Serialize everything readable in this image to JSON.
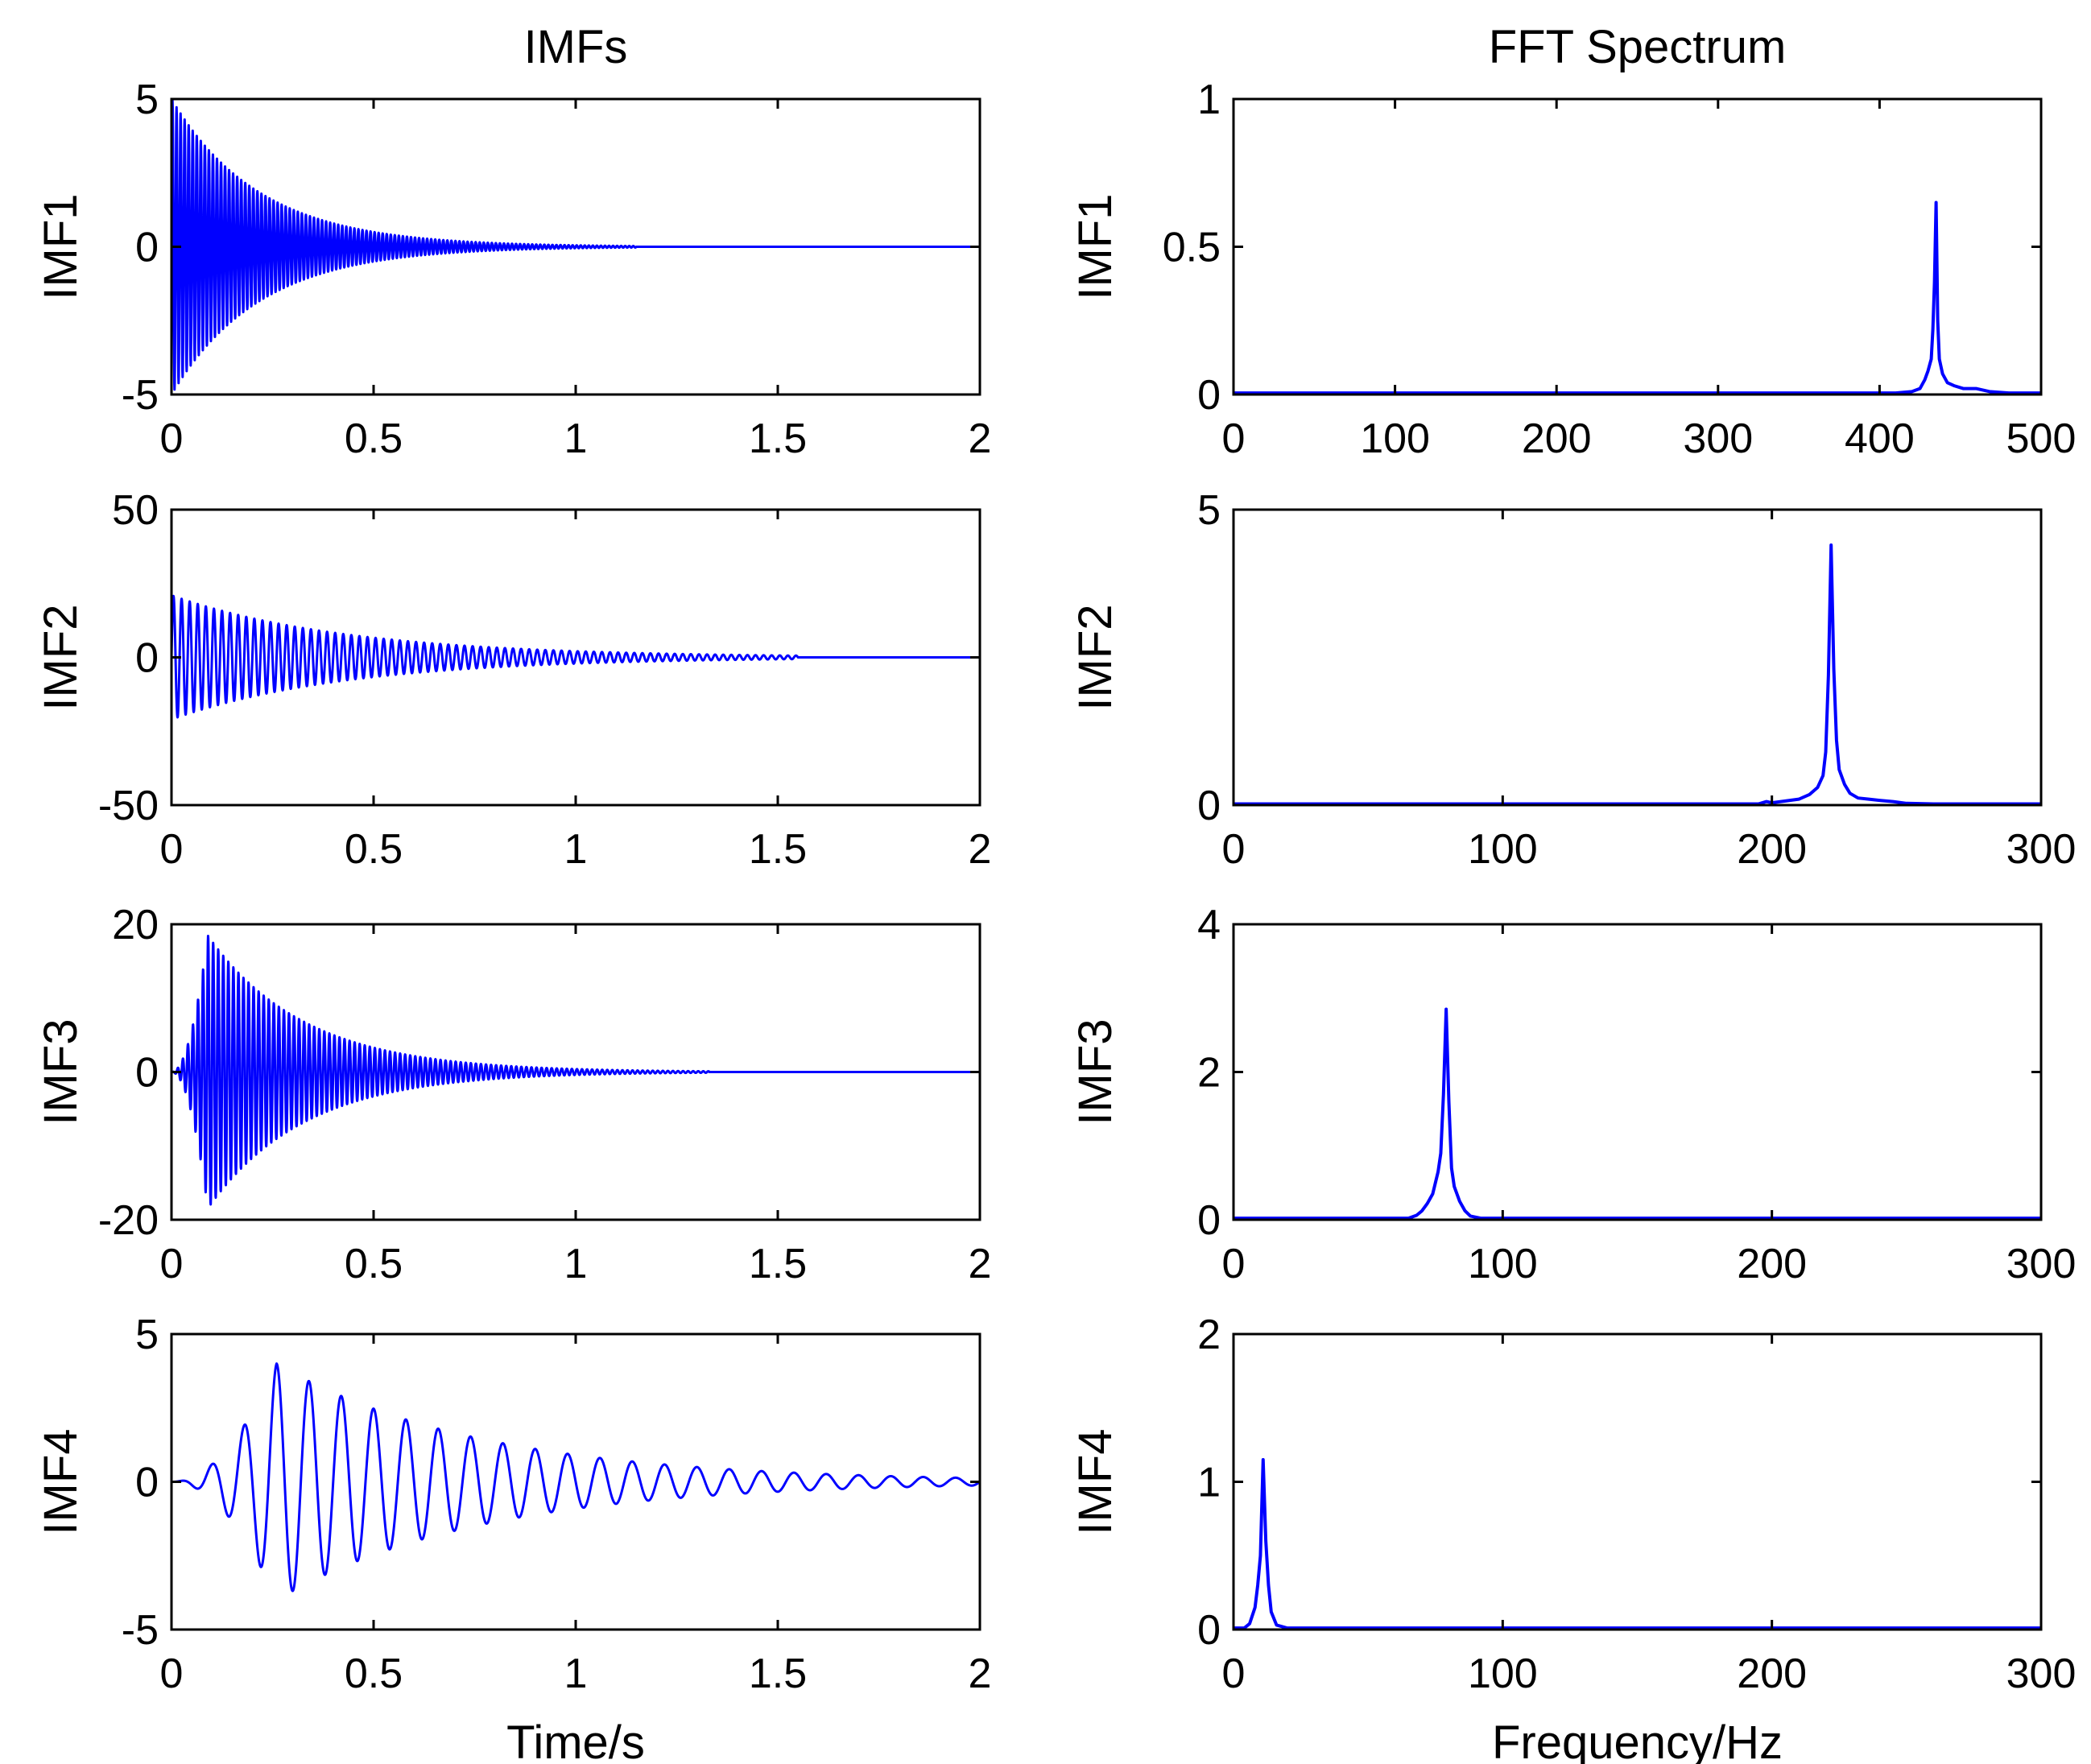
{
  "colors": {
    "line": "#0000ff",
    "axes": "#000000",
    "background": "#ffffff"
  },
  "chart_data": [
    {
      "type": "line",
      "column": "left",
      "title": "IMFs",
      "ylabel": "IMF1",
      "xlabel": "",
      "xlim": [
        0,
        2
      ],
      "ylim": [
        -5,
        5
      ],
      "xticks": [
        0,
        0.5,
        1,
        1.5,
        2
      ],
      "xticklabels": [
        "0",
        "0.5",
        "1",
        "1.5",
        "2"
      ],
      "yticks": [
        -5,
        0,
        5
      ],
      "yticklabels": [
        "-5",
        "0",
        "5"
      ],
      "signal": {
        "kind": "burst",
        "amplitude": 5,
        "decay": 4.6,
        "end": 1.15,
        "period": 0.01
      }
    },
    {
      "type": "line",
      "column": "right",
      "title": "FFT Spectrum",
      "ylabel": "IMF1",
      "xlabel": "",
      "xlim": [
        0,
        500
      ],
      "ylim": [
        0,
        1
      ],
      "xticks": [
        0,
        100,
        200,
        300,
        400,
        500
      ],
      "xticklabels": [
        "0",
        "100",
        "200",
        "300",
        "400",
        "500"
      ],
      "yticks": [
        0,
        0.5,
        1
      ],
      "yticklabels": [
        "0",
        "0.5",
        "1"
      ],
      "x": [
        0,
        410,
        420,
        425,
        428,
        430,
        432,
        433,
        434,
        435,
        436,
        437,
        439,
        442,
        446,
        452,
        460,
        468,
        480,
        500
      ],
      "y": [
        0.005,
        0.005,
        0.01,
        0.02,
        0.05,
        0.08,
        0.12,
        0.22,
        0.38,
        0.65,
        0.25,
        0.12,
        0.07,
        0.04,
        0.03,
        0.02,
        0.02,
        0.01,
        0.005,
        0.005
      ]
    },
    {
      "type": "line",
      "column": "left",
      "title": "",
      "ylabel": "IMF2",
      "xlabel": "",
      "xlim": [
        0,
        2
      ],
      "ylim": [
        -50,
        50
      ],
      "xticks": [
        0,
        0.5,
        1,
        1.5,
        2
      ],
      "xticklabels": [
        "0",
        "0.5",
        "1",
        "1.5",
        "2"
      ],
      "yticks": [
        -50,
        0,
        50
      ],
      "yticklabels": [
        "-50",
        "0",
        "50"
      ],
      "signal": {
        "kind": "burst",
        "amplitude": 21,
        "decay": 2.3,
        "end": 1.55,
        "period": 0.02
      }
    },
    {
      "type": "line",
      "column": "right",
      "title": "",
      "ylabel": "IMF2",
      "xlabel": "",
      "xlim": [
        0,
        300
      ],
      "ylim": [
        0,
        5
      ],
      "xticks": [
        0,
        100,
        200,
        300
      ],
      "xticklabels": [
        "0",
        "100",
        "200",
        "300"
      ],
      "yticks": [
        0,
        5
      ],
      "yticklabels": [
        "0",
        "5"
      ],
      "x": [
        0,
        195,
        198,
        200,
        205,
        210,
        214,
        217,
        219,
        220,
        221,
        222,
        223,
        224,
        225,
        227,
        229,
        232,
        236,
        240,
        245,
        250,
        260,
        300
      ],
      "y": [
        0.02,
        0.02,
        0.06,
        0.04,
        0.07,
        0.1,
        0.18,
        0.3,
        0.5,
        0.9,
        2.2,
        4.4,
        2.3,
        1.1,
        0.6,
        0.35,
        0.2,
        0.12,
        0.1,
        0.08,
        0.06,
        0.03,
        0.02,
        0.02
      ]
    },
    {
      "type": "line",
      "column": "left",
      "title": "",
      "ylabel": "IMF3",
      "xlabel": "",
      "xlim": [
        0,
        2
      ],
      "ylim": [
        -20,
        20
      ],
      "xticks": [
        0,
        0.5,
        1,
        1.5,
        2
      ],
      "xticklabels": [
        "0",
        "0.5",
        "1",
        "1.5",
        "2"
      ],
      "yticks": [
        -20,
        0,
        20
      ],
      "yticklabels": [
        "-20",
        "0",
        "20"
      ],
      "signal": {
        "kind": "rise",
        "amplitude": 18.5,
        "decay": 4.2,
        "peak": 0.09,
        "end": 1.33,
        "period": 0.0125
      }
    },
    {
      "type": "line",
      "column": "right",
      "title": "",
      "ylabel": "IMF3",
      "xlabel": "",
      "xlim": [
        0,
        300
      ],
      "ylim": [
        0,
        4
      ],
      "xticks": [
        0,
        100,
        200,
        300
      ],
      "xticklabels": [
        "0",
        "100",
        "200",
        "300"
      ],
      "yticks": [
        0,
        2,
        4
      ],
      "yticklabels": [
        "0",
        "2",
        "4"
      ],
      "x": [
        0,
        65,
        68,
        70,
        72,
        74,
        75,
        76,
        77,
        78,
        79,
        80,
        81,
        82,
        84,
        86,
        88,
        92,
        100,
        300
      ],
      "y": [
        0.02,
        0.02,
        0.06,
        0.12,
        0.22,
        0.35,
        0.5,
        0.65,
        0.9,
        1.7,
        2.85,
        1.6,
        0.7,
        0.45,
        0.25,
        0.12,
        0.05,
        0.02,
        0.02,
        0.02
      ]
    },
    {
      "type": "line",
      "column": "left",
      "title": "",
      "ylabel": "IMF4",
      "xlabel": "Time/s",
      "xlim": [
        0,
        2
      ],
      "ylim": [
        -5,
        5
      ],
      "xticks": [
        0,
        0.5,
        1,
        1.5,
        2
      ],
      "xticklabels": [
        "0",
        "0.5",
        "1",
        "1.5",
        "2"
      ],
      "yticks": [
        -5,
        0,
        5
      ],
      "yticklabels": [
        "-5",
        "0",
        "5"
      ],
      "signal": {
        "kind": "rise",
        "amplitude": 4,
        "decay": 2.0,
        "peak": 0.26,
        "end": 2.0,
        "period": 0.08
      }
    },
    {
      "type": "line",
      "column": "right",
      "title": "",
      "ylabel": "IMF4",
      "xlabel": "Frequency/Hz",
      "xlim": [
        0,
        300
      ],
      "ylim": [
        0,
        2
      ],
      "xticks": [
        0,
        100,
        200,
        300
      ],
      "xticklabels": [
        "0",
        "100",
        "200",
        "300"
      ],
      "yticks": [
        0,
        1,
        2
      ],
      "yticklabels": [
        "0",
        "1",
        "2"
      ],
      "x": [
        0,
        4,
        6,
        8,
        9,
        10,
        11,
        12,
        13,
        14,
        16,
        20,
        300
      ],
      "y": [
        0.01,
        0.01,
        0.04,
        0.15,
        0.3,
        0.5,
        1.15,
        0.6,
        0.3,
        0.12,
        0.03,
        0.01,
        0.01
      ]
    }
  ]
}
